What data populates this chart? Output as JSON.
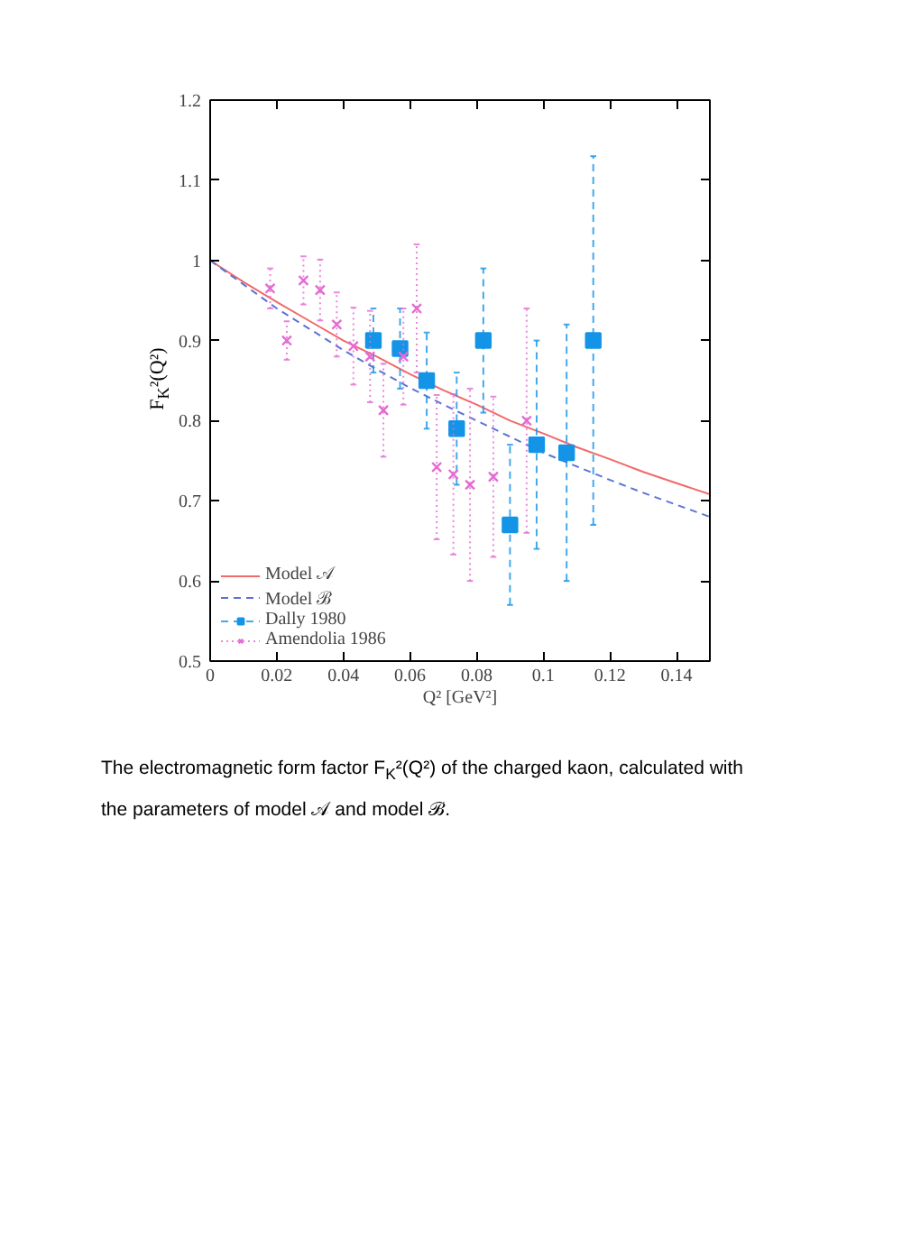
{
  "chart_data": {
    "type": "scatter",
    "xlabel": "Q² [GeV²]",
    "ylabel": "F$_{K}$²(Q²)",
    "xlim": [
      0,
      0.15
    ],
    "ylim": [
      0.5,
      1.2
    ],
    "xticks": [
      0,
      0.02,
      0.04,
      0.06,
      0.08,
      0.1,
      0.12,
      0.14
    ],
    "yticks": [
      0.5,
      0.6,
      0.7,
      0.8,
      0.9,
      1,
      1.1,
      1.2
    ],
    "grid": false,
    "legend": "bottom left",
    "series": [
      {
        "name": "Model 𝒜",
        "type": "line",
        "color": "#f06a6a",
        "line_style": "solid",
        "x": [
          0,
          0.01,
          0.02,
          0.03,
          0.04,
          0.05,
          0.06,
          0.07,
          0.08,
          0.09,
          0.1,
          0.11,
          0.12,
          0.13,
          0.14,
          0.15
        ],
        "values": [
          1.0,
          0.973,
          0.948,
          0.924,
          0.9,
          0.88,
          0.858,
          0.838,
          0.82,
          0.8,
          0.784,
          0.767,
          0.752,
          0.736,
          0.722,
          0.708
        ]
      },
      {
        "name": "Model ℬ",
        "type": "line",
        "color": "#5b73d6",
        "line_style": "dashed",
        "x": [
          0,
          0.01,
          0.02,
          0.03,
          0.04,
          0.05,
          0.06,
          0.07,
          0.08,
          0.09,
          0.1,
          0.11,
          0.12,
          0.13,
          0.14,
          0.15
        ],
        "values": [
          1.0,
          0.97,
          0.94,
          0.914,
          0.888,
          0.864,
          0.841,
          0.82,
          0.8,
          0.78,
          0.76,
          0.743,
          0.726,
          0.71,
          0.695,
          0.68
        ]
      },
      {
        "name": "Dally 1980",
        "color": "#1494e6",
        "marker": "square",
        "line_style": "dashed",
        "x": [
          0.049,
          0.057,
          0.065,
          0.074,
          0.082,
          0.09,
          0.098,
          0.107,
          0.115
        ],
        "values": [
          0.9,
          0.89,
          0.85,
          0.79,
          0.9,
          0.67,
          0.77,
          0.76,
          0.9
        ],
        "errors": [
          0.04,
          0.05,
          0.06,
          0.07,
          0.09,
          0.1,
          0.13,
          0.16,
          0.23
        ]
      },
      {
        "name": "Amendolia 1986",
        "color": "#e46ad4",
        "marker": "cross",
        "line_style": "dotted",
        "x": [
          0.018,
          0.023,
          0.028,
          0.033,
          0.038,
          0.043,
          0.048,
          0.052,
          0.058,
          0.062,
          0.068,
          0.073,
          0.078,
          0.085,
          0.095
        ],
        "values": [
          0.965,
          0.9,
          0.975,
          0.963,
          0.92,
          0.893,
          0.88,
          0.813,
          0.88,
          0.94,
          0.742,
          0.733,
          0.72,
          0.73,
          0.8
        ],
        "errors": [
          0.025,
          0.024,
          0.03,
          0.038,
          0.04,
          0.048,
          0.057,
          0.058,
          0.06,
          0.08,
          0.09,
          0.1,
          0.12,
          0.1,
          0.14
        ]
      }
    ],
    "annotations": [
      "The electromagnetic form factor F$_{K}$²(Q²) of the charged kaon, calculated with the parameters of model 𝒜 and model ℬ."
    ]
  }
}
